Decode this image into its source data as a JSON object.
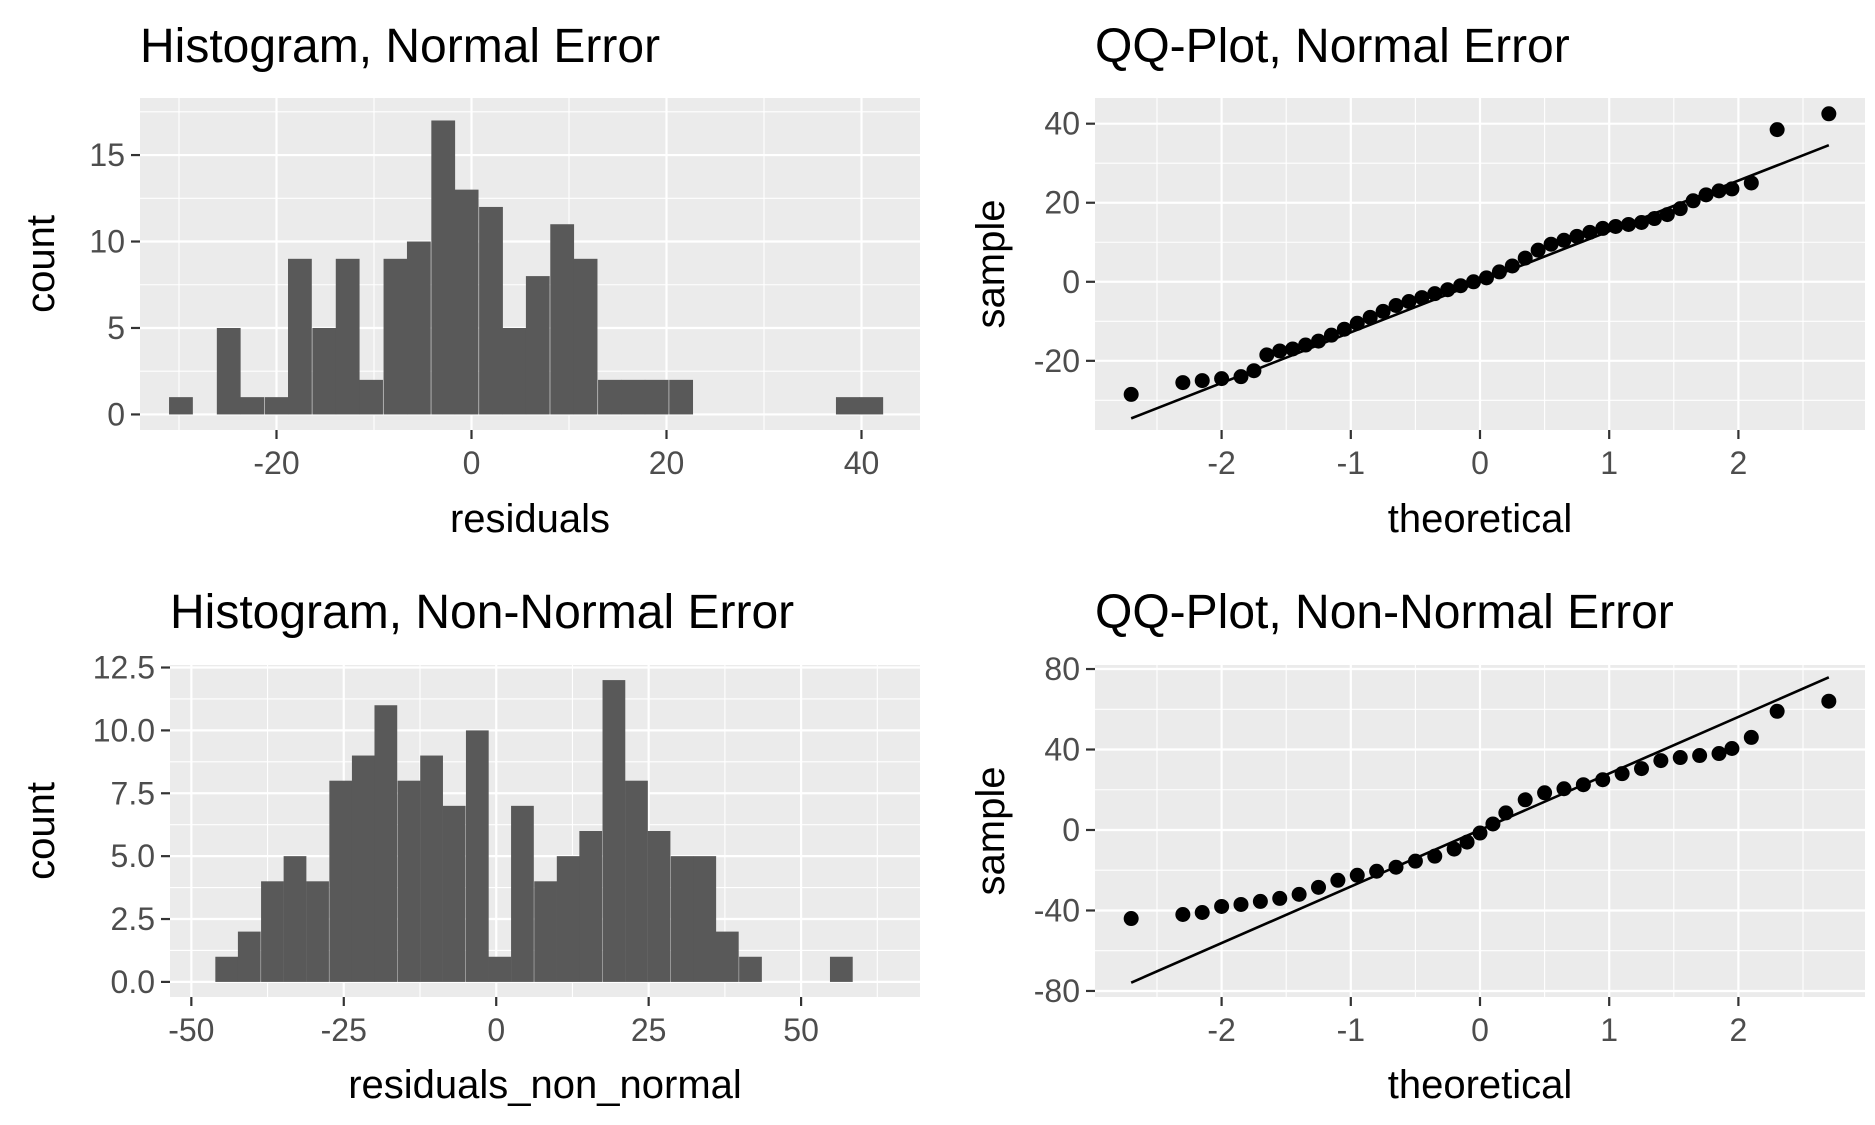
{
  "chart_data": [
    {
      "id": "hist-normal",
      "type": "bar",
      "title": "Histogram, Normal Error",
      "xlabel": "residuals",
      "ylabel": "count",
      "xlim": [
        -34,
        46
      ],
      "ylim": [
        -0.9,
        18.3
      ],
      "x_ticks": [
        -20,
        0,
        20,
        40
      ],
      "x_tick_labels": [
        "-20",
        "0",
        "20",
        "40"
      ],
      "y_ticks": [
        0,
        5,
        10,
        15
      ],
      "y_tick_labels": [
        "0",
        "5",
        "10",
        "15"
      ],
      "bin_width": 2.44,
      "x": [
        -29.8,
        -27.3,
        -24.9,
        -22.5,
        -20.0,
        -17.6,
        -15.1,
        -12.7,
        -10.3,
        -7.8,
        -5.4,
        -2.9,
        -0.5,
        2.0,
        4.4,
        6.8,
        9.3,
        11.7,
        14.2,
        16.6,
        19.0,
        21.5,
        23.9,
        26.4,
        28.8,
        31.2,
        33.7,
        36.1,
        38.6,
        41.0
      ],
      "values": [
        1,
        0,
        5,
        1,
        1,
        9,
        5,
        9,
        2,
        9,
        10,
        17,
        13,
        12,
        5,
        8,
        11,
        9,
        2,
        2,
        2,
        2,
        0,
        0,
        0,
        0,
        0,
        0,
        1,
        1
      ]
    },
    {
      "id": "qq-normal",
      "type": "scatter",
      "title": "QQ-Plot, Normal Error",
      "xlabel": "theoretical",
      "ylabel": "sample",
      "xlim": [
        -2.98,
        2.98
      ],
      "ylim": [
        -37.5,
        46.5
      ],
      "x_ticks": [
        -2,
        -1,
        0,
        1,
        2
      ],
      "x_tick_labels": [
        "-2",
        "-1",
        "0",
        "1",
        "2"
      ],
      "y_ticks": [
        -20,
        0,
        20,
        40
      ],
      "y_tick_labels": [
        "-20",
        "0",
        "20",
        "40"
      ],
      "line": {
        "slope": 12.8,
        "intercept": 0.0
      },
      "points": {
        "x": [
          -2.7,
          -2.3,
          -2.15,
          -2.0,
          -1.85,
          -1.75,
          -1.65,
          -1.55,
          -1.45,
          -1.35,
          -1.25,
          -1.15,
          -1.05,
          -0.95,
          -0.85,
          -0.75,
          -0.65,
          -0.55,
          -0.45,
          -0.35,
          -0.25,
          -0.15,
          -0.05,
          0.05,
          0.15,
          0.25,
          0.35,
          0.45,
          0.55,
          0.65,
          0.75,
          0.85,
          0.95,
          1.05,
          1.15,
          1.25,
          1.35,
          1.45,
          1.55,
          1.65,
          1.75,
          1.85,
          1.95,
          2.1,
          2.3,
          2.7
        ],
        "y": [
          -28.5,
          -25.5,
          -25.0,
          -24.5,
          -24.0,
          -22.5,
          -18.5,
          -17.5,
          -17.0,
          -16.0,
          -15.0,
          -13.5,
          -12.0,
          -10.5,
          -9.0,
          -7.5,
          -6.0,
          -5.0,
          -4.0,
          -3.0,
          -2.0,
          -1.0,
          0.0,
          1.0,
          2.5,
          4.0,
          6.0,
          8.0,
          9.5,
          10.5,
          11.5,
          12.5,
          13.5,
          14.0,
          14.5,
          15.0,
          16.0,
          17.0,
          18.5,
          20.5,
          22.0,
          23.0,
          23.5,
          25.0,
          38.5,
          42.5
        ]
      }
    },
    {
      "id": "hist-non-normal",
      "type": "bar",
      "title": "Histogram, Non-Normal Error",
      "xlabel": "residuals_non_normal",
      "ylabel": "count",
      "xlim": [
        -53.5,
        69.5
      ],
      "ylim": [
        -0.6,
        12.6
      ],
      "x_ticks": [
        -50,
        -25,
        0,
        25,
        50
      ],
      "x_tick_labels": [
        "-50",
        "-25",
        "0",
        "25",
        "50"
      ],
      "y_ticks": [
        0,
        2.5,
        5,
        7.5,
        10,
        12.5
      ],
      "y_tick_labels": [
        "0.0",
        "2.5",
        "5.0",
        "7.5",
        "10.0",
        "12.5"
      ],
      "bin_width": 3.73,
      "x": [
        -44.2,
        -40.5,
        -36.7,
        -33.0,
        -29.3,
        -25.5,
        -21.8,
        -18.1,
        -14.3,
        -10.6,
        -6.9,
        -3.1,
        0.6,
        4.3,
        8.1,
        11.8,
        15.5,
        19.3,
        23.0,
        26.7,
        30.5,
        34.2,
        37.9,
        41.7,
        45.4,
        49.1,
        52.9,
        56.6,
        60.3
      ],
      "values": [
        1,
        2,
        4,
        5,
        4,
        8,
        9,
        11,
        8,
        9,
        7,
        10,
        1,
        7,
        4,
        5,
        6,
        12,
        8,
        6,
        5,
        5,
        2,
        1,
        0,
        0,
        0,
        1,
        0
      ]
    },
    {
      "id": "qq-non-normal",
      "type": "scatter",
      "title": "QQ-Plot, Non-Normal Error",
      "xlabel": "theoretical",
      "ylabel": "sample",
      "xlim": [
        -2.98,
        2.98
      ],
      "ylim": [
        -83,
        82
      ],
      "x_ticks": [
        -2,
        -1,
        0,
        1,
        2
      ],
      "x_tick_labels": [
        "-2",
        "-1",
        "0",
        "1",
        "2"
      ],
      "y_ticks": [
        -80,
        -40,
        0,
        40,
        80
      ],
      "y_tick_labels": [
        "-80",
        "-40",
        "0",
        "40",
        "80"
      ],
      "line": {
        "slope": 28.1,
        "intercept": 0.0
      },
      "points": {
        "x": [
          -2.7,
          -2.3,
          -2.15,
          -2.0,
          -1.85,
          -1.7,
          -1.55,
          -1.4,
          -1.25,
          -1.1,
          -0.95,
          -0.8,
          -0.65,
          -0.5,
          -0.35,
          -0.2,
          -0.1,
          0.0,
          0.1,
          0.2,
          0.35,
          0.5,
          0.65,
          0.8,
          0.95,
          1.1,
          1.25,
          1.4,
          1.55,
          1.7,
          1.85,
          1.95,
          2.1,
          2.3,
          2.7
        ],
        "y": [
          -44.0,
          -42.0,
          -41.0,
          -38.0,
          -37.0,
          -35.5,
          -34.0,
          -32.0,
          -28.5,
          -25.0,
          -22.5,
          -20.5,
          -18.5,
          -15.5,
          -13.0,
          -9.5,
          -6.0,
          -1.5,
          3.0,
          8.5,
          15.0,
          18.5,
          20.5,
          22.5,
          25.0,
          28.0,
          30.5,
          34.5,
          36.0,
          37.0,
          38.0,
          40.5,
          46.0,
          59.0,
          64.0
        ]
      }
    }
  ]
}
